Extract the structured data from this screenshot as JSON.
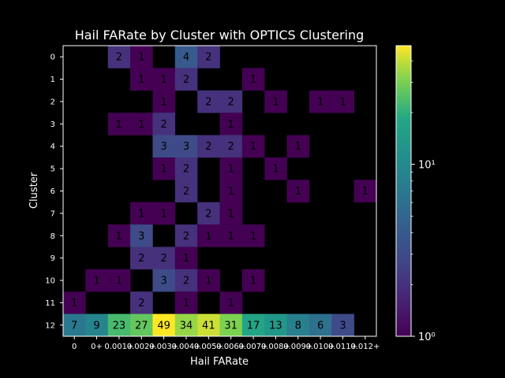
{
  "chart_data": {
    "type": "heatmap",
    "title": "Hail FARate by Cluster with OPTICS Clustering",
    "xlabel": "Hail FARate",
    "ylabel": "Cluster",
    "x_categories": [
      "0",
      "0+",
      "0.001+",
      "0.002+",
      "0.003+",
      "0.004+",
      "0.005+",
      "0.006+",
      "0.007+",
      "0.008+",
      "0.009+",
      "0.010+",
      "0.011+",
      "0.012+"
    ],
    "y_categories": [
      "0",
      "1",
      "2",
      "3",
      "4",
      "5",
      "6",
      "7",
      "8",
      "9",
      "10",
      "11",
      "12"
    ],
    "x_tick_labels": [
      "0",
      "0+",
      "0.001+",
      "0.002+",
      "0.003+",
      "0.004+",
      "0.005+",
      "0.006+",
      "0.007+",
      "0.008+",
      "0.009+",
      "0.010+",
      "0.011+",
      "0.012+"
    ],
    "values": [
      [
        null,
        null,
        2,
        1,
        null,
        4,
        2,
        null,
        null,
        null,
        null,
        null,
        null,
        null
      ],
      [
        null,
        null,
        null,
        1,
        1,
        2,
        null,
        null,
        1,
        null,
        null,
        null,
        null,
        null
      ],
      [
        null,
        null,
        null,
        null,
        1,
        null,
        2,
        2,
        null,
        1,
        null,
        1,
        1,
        null
      ],
      [
        null,
        null,
        1,
        1,
        2,
        null,
        null,
        1,
        null,
        null,
        null,
        null,
        null,
        null
      ],
      [
        null,
        null,
        null,
        null,
        3,
        3,
        2,
        2,
        1,
        null,
        1,
        null,
        null,
        null
      ],
      [
        null,
        null,
        null,
        null,
        1,
        2,
        null,
        1,
        null,
        1,
        null,
        null,
        null,
        null
      ],
      [
        null,
        null,
        null,
        null,
        null,
        2,
        null,
        1,
        null,
        null,
        1,
        null,
        null,
        1
      ],
      [
        null,
        null,
        null,
        1,
        1,
        null,
        2,
        1,
        null,
        null,
        null,
        null,
        null,
        null
      ],
      [
        null,
        null,
        1,
        3,
        null,
        2,
        1,
        1,
        1,
        null,
        null,
        null,
        null,
        null
      ],
      [
        null,
        null,
        null,
        2,
        2,
        1,
        null,
        null,
        null,
        null,
        null,
        null,
        null,
        null
      ],
      [
        null,
        1,
        1,
        null,
        3,
        2,
        1,
        null,
        1,
        null,
        null,
        null,
        null,
        null
      ],
      [
        1,
        null,
        null,
        2,
        null,
        1,
        null,
        1,
        null,
        null,
        null,
        null,
        null,
        null
      ],
      [
        7,
        9,
        23,
        27,
        49,
        34,
        41,
        31,
        17,
        13,
        8,
        6,
        3,
        null
      ]
    ],
    "colorscale": "viridis",
    "color_scale_type": "log",
    "color_range": [
      1,
      49
    ],
    "colorbar_ticks": [
      {
        "value": 1,
        "label": "10⁰"
      },
      {
        "value": 10,
        "label": "10¹"
      }
    ],
    "missing_color": "#000000",
    "grid": false
  }
}
